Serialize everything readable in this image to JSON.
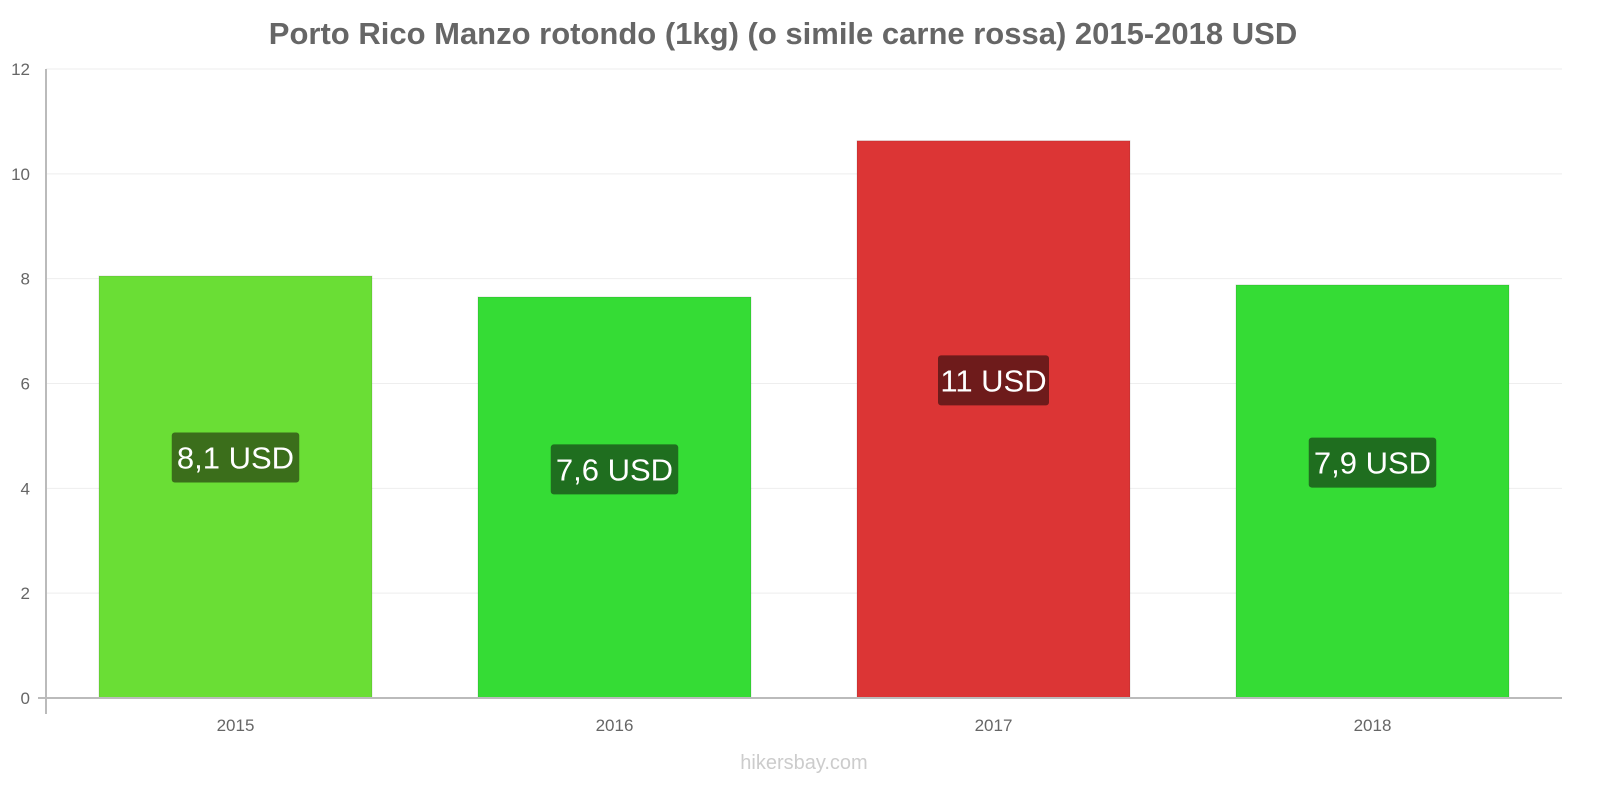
{
  "chart_data": {
    "type": "bar",
    "title": "Porto Rico Manzo rotondo (1kg) (o simile carne rossa) 2015-2018 USD",
    "categories": [
      "2015",
      "2016",
      "2017",
      "2018"
    ],
    "values": [
      8.05,
      7.65,
      10.63,
      7.88
    ],
    "data_labels": [
      "8,1 USD",
      "7,6 USD",
      "11 USD",
      "7,9 USD"
    ],
    "bar_colors": [
      "#6ade35",
      "#35dc35",
      "#dc3535",
      "#35dc35"
    ],
    "label_colors": [
      "#3b6e1b",
      "#1f6e1f",
      "#6e1b1b",
      "#1f6e1f"
    ],
    "xlabel": "",
    "ylabel": "",
    "ylim": [
      0,
      12
    ],
    "yticks": [
      0,
      2,
      4,
      6,
      8,
      10,
      12
    ],
    "grid": true
  },
  "credit": "hikersbay.com"
}
